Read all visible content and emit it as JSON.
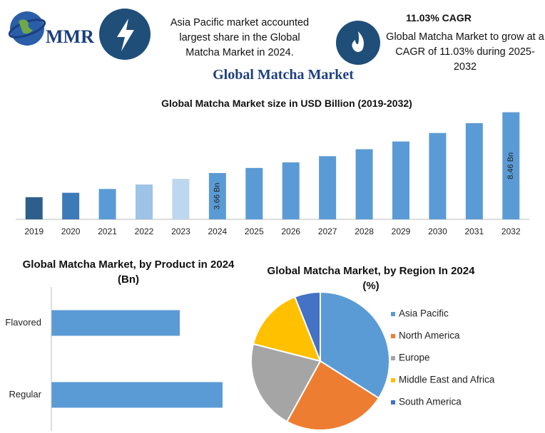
{
  "header": {
    "logo": "MMR",
    "note_left": "Asia Pacific market accounted largest share in the Global Matcha Market in 2024.",
    "cagr_title": "11.03% CAGR",
    "note_right": "Global Matcha Market to grow at a CAGR of 11.03% during 2025-2032",
    "title": "Global Matcha Market"
  },
  "chart_data": [
    {
      "type": "bar",
      "title": "Global Matcha Market size in USD Billion (2019-2032)",
      "categories": [
        "2019",
        "2020",
        "2021",
        "2022",
        "2023",
        "2024",
        "2025",
        "2026",
        "2027",
        "2028",
        "2029",
        "2030",
        "2031",
        "2032"
      ],
      "values": [
        1.75,
        2.1,
        2.4,
        2.75,
        3.2,
        3.66,
        4.06,
        4.5,
        4.99,
        5.54,
        6.15,
        6.82,
        7.6,
        8.46
      ],
      "value_labels": [
        null,
        null,
        null,
        null,
        null,
        "3.66 Bn",
        null,
        null,
        null,
        null,
        null,
        null,
        null,
        "8.46 Bn"
      ],
      "colors": [
        "#2e5f8a",
        "#3d7ab8",
        "#5b9bd5",
        "#9dc3e6",
        "#bdd7ee",
        "#5b9bd5",
        "#5b9bd5",
        "#5b9bd5",
        "#5b9bd5",
        "#5b9bd5",
        "#5b9bd5",
        "#5b9bd5",
        "#5b9bd5",
        "#5b9bd5"
      ],
      "ylim": [
        0,
        9
      ]
    },
    {
      "type": "barh",
      "title": "Global Matcha Market, by Product in 2024 (Bn)",
      "categories": [
        "Flavored",
        "Regular"
      ],
      "values": [
        1.2,
        1.6
      ],
      "color": "#5b9bd5",
      "xlim": [
        0,
        2.2
      ]
    },
    {
      "type": "pie",
      "title": "Global Matcha Market, by Region In 2024 (%)",
      "categories": [
        "Asia Pacific",
        "North America",
        "Europe",
        "Middle East and Africa",
        "South America"
      ],
      "values": [
        34,
        24,
        21,
        15,
        6
      ],
      "colors": [
        "#5b9bd5",
        "#ed7d31",
        "#a5a5a5",
        "#ffc000",
        "#4472c4"
      ],
      "legend": "right"
    }
  ]
}
